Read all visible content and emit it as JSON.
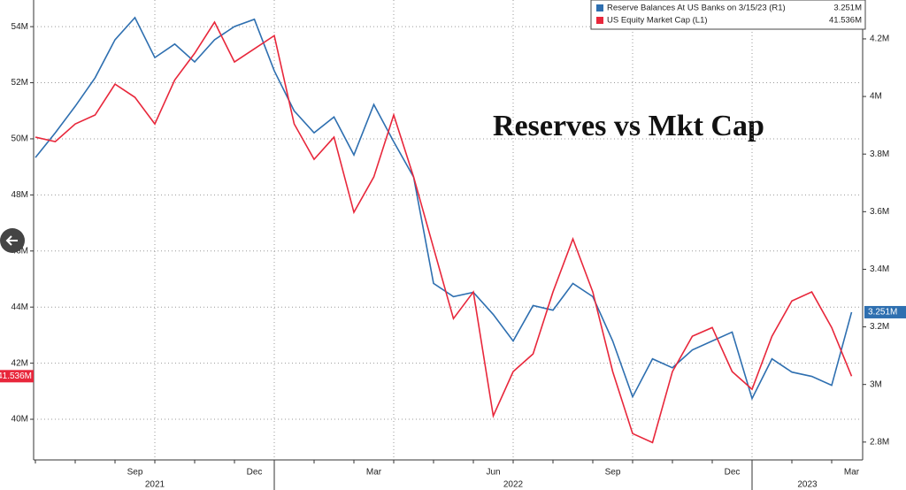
{
  "chart_data": {
    "type": "line",
    "annotation": "Reserves vs Mkt Cap",
    "categories": [
      null,
      null,
      null,
      null,
      null,
      "Sep",
      null,
      null,
      null,
      null,
      null,
      "Dec",
      null,
      null,
      null,
      null,
      null,
      "Mar",
      null,
      null,
      null,
      null,
      null,
      "Jun",
      null,
      null,
      null,
      null,
      null,
      "Sep",
      null,
      null,
      null,
      null,
      null,
      "Dec",
      null,
      null,
      null,
      null,
      null,
      "Mar"
    ],
    "x_groups": [
      "2021",
      "2022",
      "2023"
    ],
    "series": [
      {
        "name": "Reserve Balances At US Banks on 3/15/23 (R1)",
        "color": "#2e6fb0",
        "axis": "y2",
        "last_label": "3.251M",
        "values": [
          3.788,
          3.874,
          3.966,
          4.065,
          4.197,
          4.274,
          4.135,
          4.182,
          4.12,
          4.197,
          4.243,
          4.268,
          4.089,
          3.95,
          3.874,
          3.929,
          3.797,
          3.972,
          3.843,
          3.72,
          3.351,
          3.305,
          3.32,
          3.243,
          3.151,
          3.274,
          3.258,
          3.351,
          3.305,
          3.151,
          2.957,
          3.089,
          3.058,
          3.12,
          3.151,
          3.182,
          2.951,
          3.089,
          3.043,
          3.028,
          2.997,
          3.251
        ]
      },
      {
        "name": "US Equity Market Cap  (L1)",
        "color": "#e8273b",
        "axis": "y",
        "last_label": "41.536M",
        "values": [
          50.06,
          49.9,
          50.53,
          50.85,
          51.95,
          51.48,
          50.53,
          52.1,
          53.05,
          54.16,
          52.74,
          53.21,
          53.68,
          50.53,
          49.27,
          50.06,
          47.38,
          48.64,
          50.85,
          48.64,
          46.11,
          43.59,
          44.54,
          40.12,
          41.7,
          42.33,
          44.54,
          46.43,
          44.54,
          41.7,
          39.49,
          39.17,
          41.7,
          42.96,
          43.27,
          41.7,
          41.07,
          42.96,
          44.22,
          44.54,
          43.27,
          41.536
        ]
      }
    ],
    "ylim": [
      38.55,
      54.95
    ],
    "yticks": [
      {
        "value": 40,
        "label": "40M"
      },
      {
        "value": 42,
        "label": "42M"
      },
      {
        "value": 44,
        "label": "44M"
      },
      {
        "value": 46,
        "label": "46M"
      },
      {
        "value": 48,
        "label": "48M"
      },
      {
        "value": 50,
        "label": "50M"
      },
      {
        "value": 52,
        "label": "52M"
      },
      {
        "value": 54,
        "label": "54M"
      }
    ],
    "y2lim": [
      2.738,
      4.335
    ],
    "y2ticks": [
      {
        "value": 2.8,
        "label": "2.8M"
      },
      {
        "value": 3,
        "label": "3M"
      },
      {
        "value": 3.2,
        "label": "3.2M"
      },
      {
        "value": 3.4,
        "label": "3.4M"
      },
      {
        "value": 3.6,
        "label": "3.6M"
      },
      {
        "value": 3.8,
        "label": "3.8M"
      },
      {
        "value": 4,
        "label": "4M"
      },
      {
        "value": 4.2,
        "label": "4.2M"
      }
    ],
    "grid": true
  }
}
